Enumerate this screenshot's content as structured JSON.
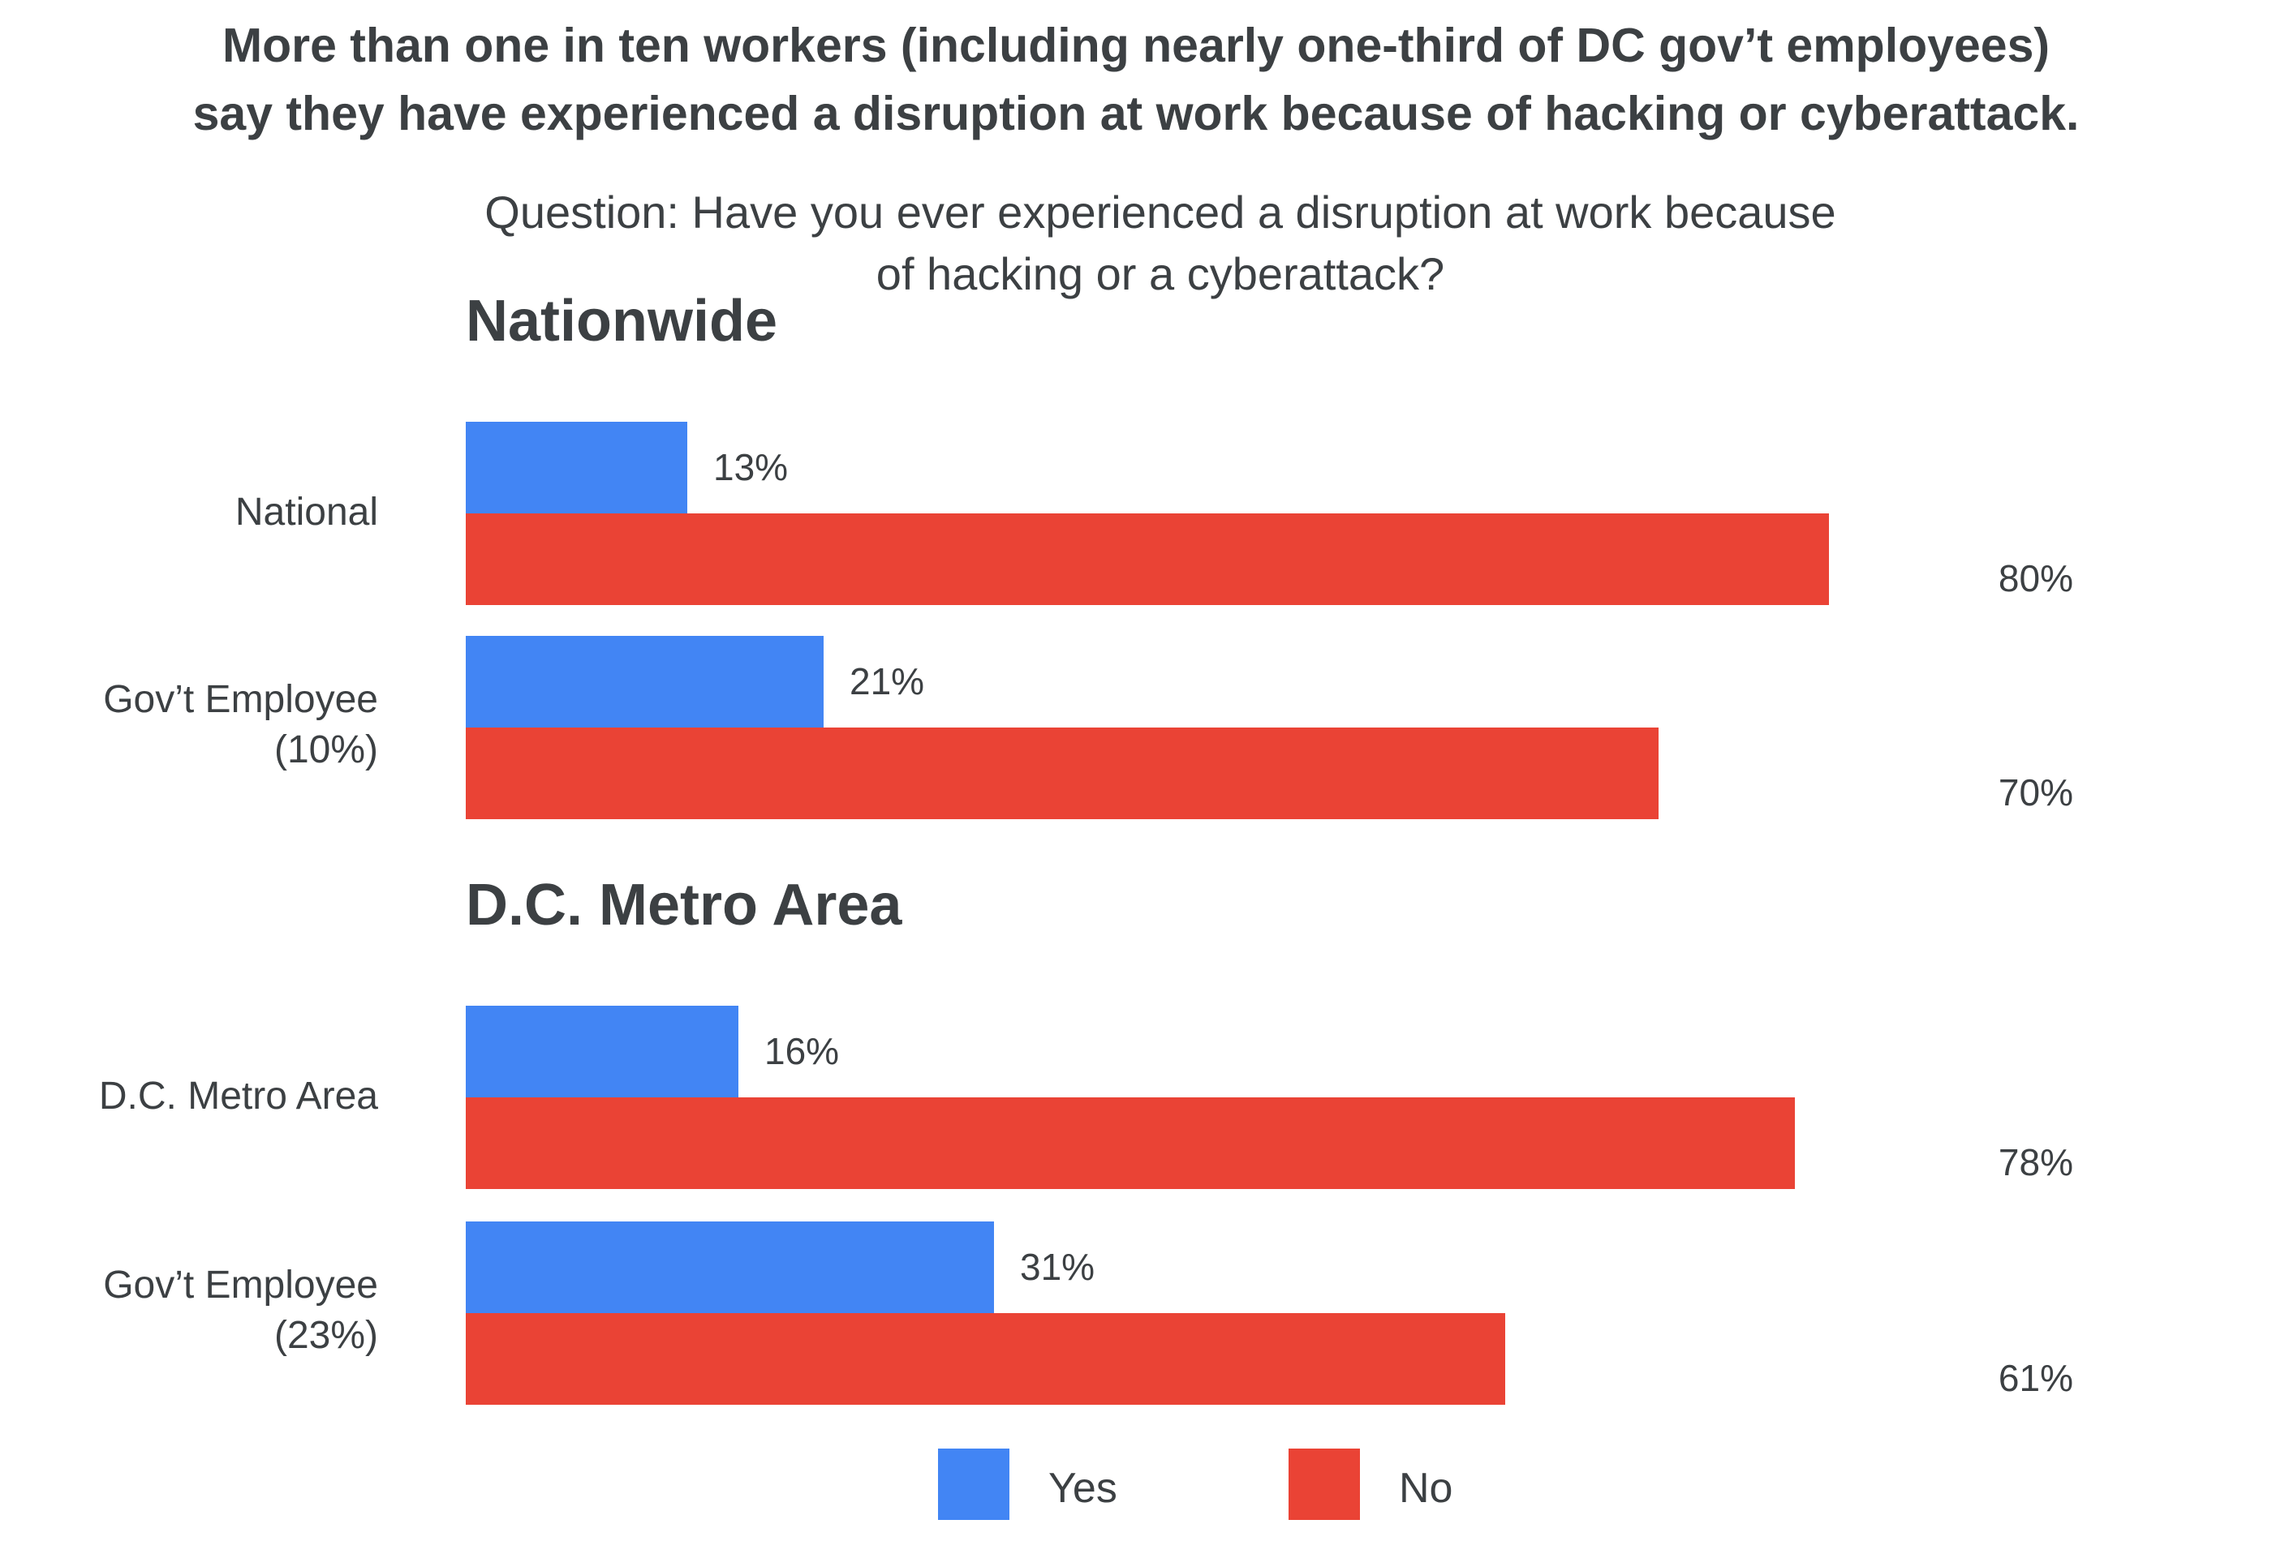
{
  "title_line1": "More than one in ten workers (including nearly one-third of DC gov’t employees)",
  "title_line2": "say they have experienced a disruption at work because of hacking or cyberattack.",
  "question_line1": "Question: Have you ever experienced a disruption at work because",
  "question_line2": "of hacking or a cyberattack?",
  "colors": {
    "yes": "#4285f4",
    "no": "#ea4335"
  },
  "chart_data": {
    "type": "bar",
    "orientation": "horizontal",
    "xlim": [
      0,
      100
    ],
    "legend": {
      "position": "bottom",
      "entries": [
        "Yes",
        "No"
      ]
    },
    "groups": [
      {
        "title": "Nationwide",
        "rows": [
          {
            "label": [
              "National"
            ],
            "yes": 13,
            "no": 80,
            "yes_label": "13%",
            "no_label": "80%"
          },
          {
            "label": [
              "Gov’t Employee",
              "(10%)"
            ],
            "yes": 21,
            "no": 70,
            "yes_label": "21%",
            "no_label": "70%"
          }
        ]
      },
      {
        "title": "D.C. Metro Area",
        "rows": [
          {
            "label": [
              "D.C. Metro Area"
            ],
            "yes": 16,
            "no": 78,
            "yes_label": "16%",
            "no_label": "78%"
          },
          {
            "label": [
              "Gov’t Employee",
              "(23%)"
            ],
            "yes": 31,
            "no": 61,
            "yes_label": "31%",
            "no_label": "61%"
          }
        ]
      }
    ]
  }
}
